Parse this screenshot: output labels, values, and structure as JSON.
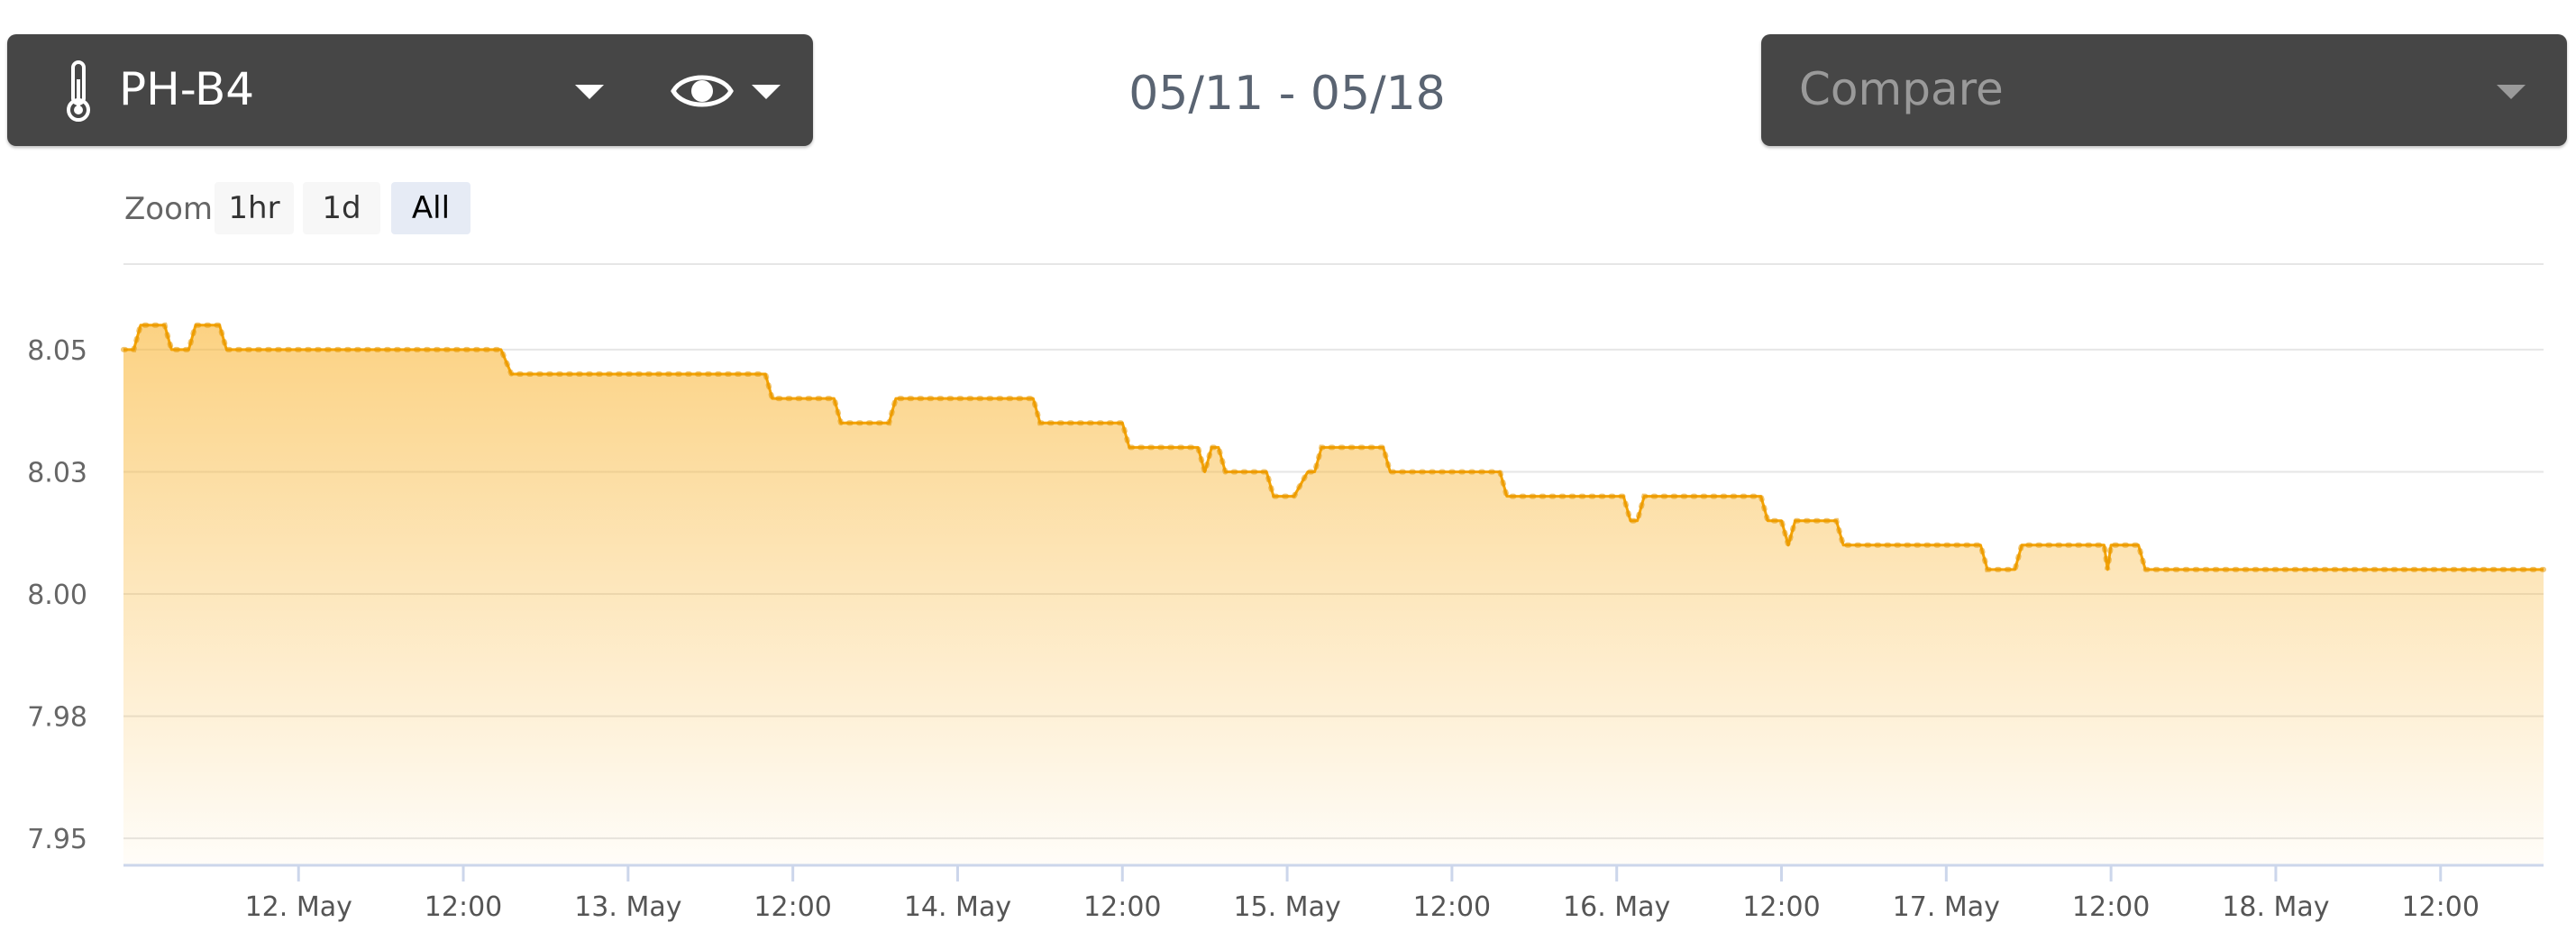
{
  "toolbar": {
    "sensor_label": "PH-B4",
    "date_range": "05/11 - 05/18",
    "compare_placeholder": "Compare",
    "icons": [
      "thermometer-icon",
      "chevron-down-icon",
      "eye-icon",
      "chevron-down-icon"
    ]
  },
  "zoom": {
    "label": "Zoom",
    "buttons": [
      "1hr",
      "1d",
      "All"
    ],
    "selected": "All"
  },
  "chart_data": {
    "type": "area",
    "series_color": "#f5a300",
    "ylim": [
      7.947,
      8.07
    ],
    "yticks": [
      {
        "value": 7.9525,
        "label": "7.95"
      },
      {
        "value": 7.9775,
        "label": "7.98"
      },
      {
        "value": 8.0025,
        "label": "8.00"
      },
      {
        "value": 8.0275,
        "label": "8.03"
      },
      {
        "value": 8.0525,
        "label": "8.05"
      }
    ],
    "xlim": [
      "2025-05-11T11:15",
      "2025-05-18T19:30"
    ],
    "xticks": [
      {
        "t": "2025-05-12T00:00",
        "label": "12. May"
      },
      {
        "t": "2025-05-12T12:00",
        "label": "12:00"
      },
      {
        "t": "2025-05-13T00:00",
        "label": "13. May"
      },
      {
        "t": "2025-05-13T12:00",
        "label": "12:00"
      },
      {
        "t": "2025-05-14T00:00",
        "label": "14. May"
      },
      {
        "t": "2025-05-14T12:00",
        "label": "12:00"
      },
      {
        "t": "2025-05-15T00:00",
        "label": "15. May"
      },
      {
        "t": "2025-05-15T12:00",
        "label": "12:00"
      },
      {
        "t": "2025-05-16T00:00",
        "label": "16. May"
      },
      {
        "t": "2025-05-16T12:00",
        "label": "12:00"
      },
      {
        "t": "2025-05-17T00:00",
        "label": "17. May"
      },
      {
        "t": "2025-05-17T12:00",
        "label": "12:00"
      },
      {
        "t": "2025-05-18T00:00",
        "label": "18. May"
      },
      {
        "t": "2025-05-18T12:00",
        "label": "12:00"
      }
    ],
    "points": [
      [
        "2025-05-11T11:15",
        8.0525
      ],
      [
        "2025-05-11T12:00",
        8.0525
      ],
      [
        "2025-05-11T12:30",
        8.0575
      ],
      [
        "2025-05-11T14:15",
        8.0575
      ],
      [
        "2025-05-11T14:45",
        8.0525
      ],
      [
        "2025-05-11T16:00",
        8.0525
      ],
      [
        "2025-05-11T16:30",
        8.0575
      ],
      [
        "2025-05-11T18:15",
        8.0575
      ],
      [
        "2025-05-11T18:45",
        8.0525
      ],
      [
        "2025-05-12T14:45",
        8.0525
      ],
      [
        "2025-05-12T15:30",
        8.0475
      ],
      [
        "2025-05-13T10:00",
        8.0475
      ],
      [
        "2025-05-13T10:30",
        8.0425
      ],
      [
        "2025-05-13T15:00",
        8.0425
      ],
      [
        "2025-05-13T15:30",
        8.0375
      ],
      [
        "2025-05-13T19:00",
        8.0375
      ],
      [
        "2025-05-13T19:30",
        8.0425
      ],
      [
        "2025-05-14T05:30",
        8.0425
      ],
      [
        "2025-05-14T06:00",
        8.0375
      ],
      [
        "2025-05-14T12:00",
        8.0375
      ],
      [
        "2025-05-14T12:30",
        8.0325
      ],
      [
        "2025-05-14T17:30",
        8.0325
      ],
      [
        "2025-05-14T18:00",
        8.0275
      ],
      [
        "2025-05-14T18:30",
        8.0325
      ],
      [
        "2025-05-14T19:00",
        8.0325
      ],
      [
        "2025-05-14T19:30",
        8.0275
      ],
      [
        "2025-05-14T22:30",
        8.0275
      ],
      [
        "2025-05-14T23:00",
        8.0225
      ],
      [
        "2025-05-15T00:30",
        8.0225
      ],
      [
        "2025-05-15T01:30",
        8.0275
      ],
      [
        "2025-05-15T02:00",
        8.0275
      ],
      [
        "2025-05-15T02:30",
        8.0325
      ],
      [
        "2025-05-15T07:00",
        8.0325
      ],
      [
        "2025-05-15T07:30",
        8.0275
      ],
      [
        "2025-05-15T15:30",
        8.0275
      ],
      [
        "2025-05-15T16:00",
        8.0225
      ],
      [
        "2025-05-16T00:30",
        8.0225
      ],
      [
        "2025-05-16T01:00",
        8.0175
      ],
      [
        "2025-05-16T01:30",
        8.0175
      ],
      [
        "2025-05-16T02:00",
        8.0225
      ],
      [
        "2025-05-16T10:30",
        8.0225
      ],
      [
        "2025-05-16T11:00",
        8.0175
      ],
      [
        "2025-05-16T12:00",
        8.0175
      ],
      [
        "2025-05-16T12:30",
        8.0125
      ],
      [
        "2025-05-16T13:00",
        8.0175
      ],
      [
        "2025-05-16T16:00",
        8.0175
      ],
      [
        "2025-05-16T16:30",
        8.0125
      ],
      [
        "2025-05-16T16:45",
        8.0125
      ],
      [
        "2025-05-16T17:00",
        8.0125
      ],
      [
        "2025-05-17T02:30",
        8.0125
      ],
      [
        "2025-05-17T03:00",
        8.0075
      ],
      [
        "2025-05-17T05:00",
        8.0075
      ],
      [
        "2025-05-17T05:30",
        8.0125
      ],
      [
        "2025-05-17T11:30",
        8.0125
      ],
      [
        "2025-05-17T11:45",
        8.0075
      ],
      [
        "2025-05-17T12:00",
        8.0125
      ],
      [
        "2025-05-17T14:00",
        8.0125
      ],
      [
        "2025-05-17T14:30",
        8.0075
      ],
      [
        "2025-05-18T19:30",
        8.0075
      ]
    ]
  }
}
